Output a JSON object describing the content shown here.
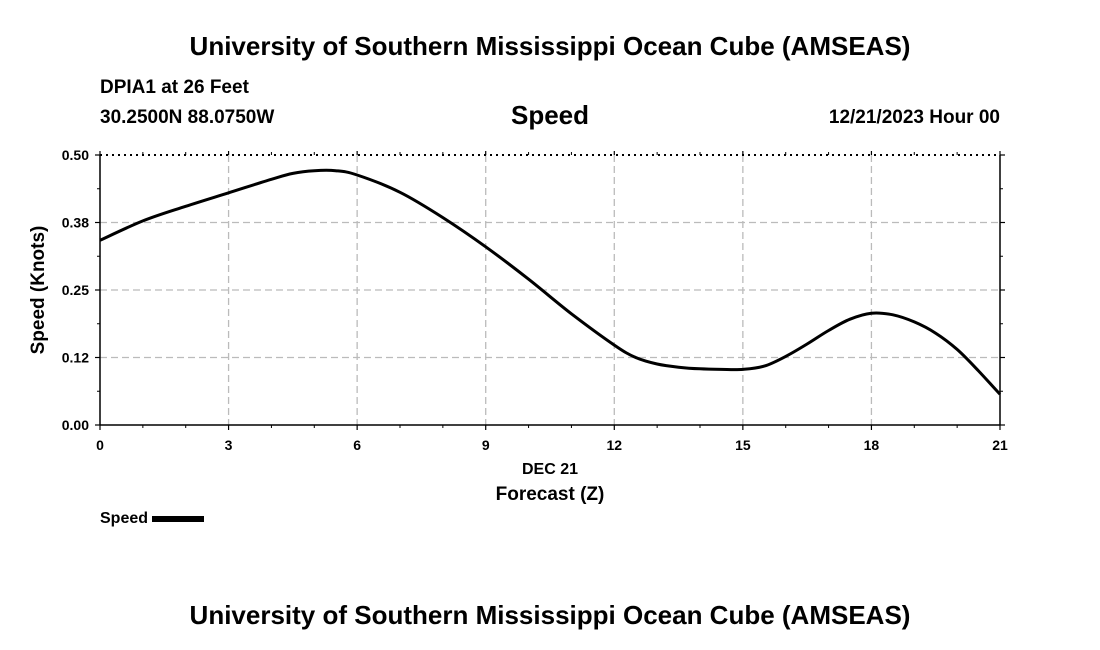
{
  "header": {
    "title": "University of Southern Mississippi Ocean Cube (AMSEAS)",
    "station": "DPIA1 at 26 Feet",
    "coordinates": "30.2500N  88.0750W",
    "datetime": "12/21/2023 Hour 00"
  },
  "footer": {
    "title": "University of Southern Mississippi Ocean Cube (AMSEAS)"
  },
  "legend": {
    "label": "Speed"
  },
  "chart_data": {
    "type": "line",
    "title": "Speed",
    "xlabel": "Forecast (Z)",
    "date_label": "DEC 21",
    "ylabel": "Speed (Knots)",
    "xlim": [
      0,
      21
    ],
    "ylim": [
      0,
      0.5
    ],
    "x_ticks": [
      0,
      3,
      6,
      9,
      12,
      15,
      18,
      21
    ],
    "x_tick_labels": [
      "0",
      "3",
      "6",
      "9",
      "12",
      "15",
      "18",
      "21"
    ],
    "y_ticks": [
      0,
      0.125,
      0.25,
      0.375,
      0.5
    ],
    "y_tick_labels": [
      "0.00",
      "0.12",
      "0.25",
      "0.38",
      "0.50"
    ],
    "grid": true,
    "line_color": "#000000",
    "series": [
      {
        "name": "Speed",
        "x": [
          0,
          1,
          2,
          3,
          4,
          4.5,
          5,
          5.5,
          6,
          7,
          8,
          9,
          10,
          11,
          12,
          12.5,
          13,
          13.5,
          14,
          14.5,
          15,
          15.5,
          16,
          16.5,
          17,
          17.5,
          18,
          18.5,
          19,
          19.5,
          20,
          20.5,
          21
        ],
        "values": [
          0.342,
          0.378,
          0.405,
          0.43,
          0.455,
          0.466,
          0.471,
          0.471,
          0.463,
          0.431,
          0.384,
          0.33,
          0.27,
          0.206,
          0.148,
          0.125,
          0.113,
          0.107,
          0.104,
          0.103,
          0.103,
          0.109,
          0.127,
          0.15,
          0.175,
          0.196,
          0.207,
          0.204,
          0.191,
          0.17,
          0.14,
          0.1,
          0.057
        ]
      }
    ]
  }
}
